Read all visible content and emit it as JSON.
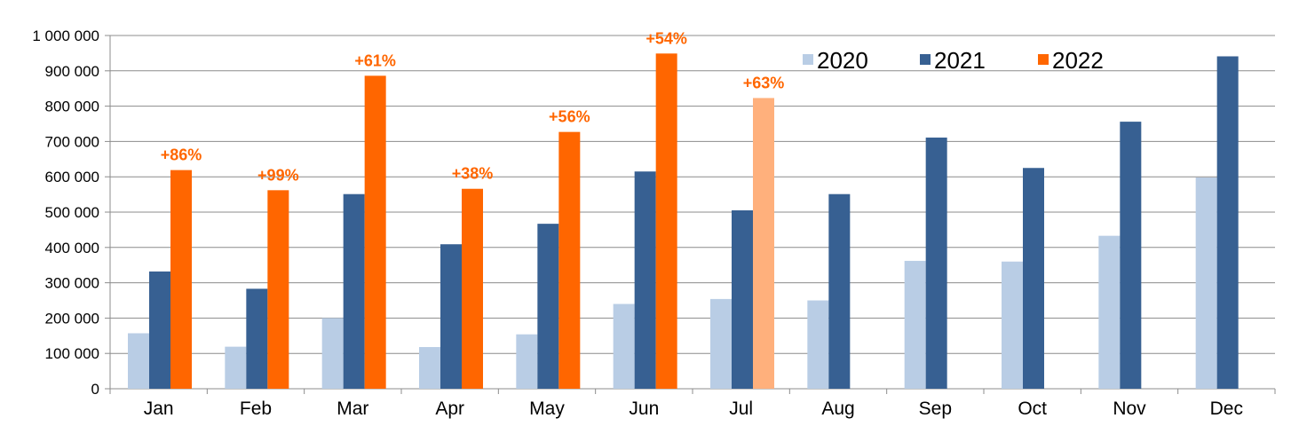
{
  "chart_data": {
    "type": "bar",
    "categories": [
      "Jan",
      "Feb",
      "Mar",
      "Apr",
      "May",
      "Jun",
      "Jul",
      "Aug",
      "Sep",
      "Oct",
      "Nov",
      "Dec"
    ],
    "series": [
      {
        "name": "2020",
        "color": "#b9cde5",
        "values": [
          157000,
          119000,
          200000,
          118000,
          154000,
          240000,
          254000,
          250000,
          362000,
          360000,
          433000,
          598000
        ]
      },
      {
        "name": "2021",
        "color": "#376092",
        "values": [
          332000,
          283000,
          551000,
          409000,
          467000,
          615000,
          505000,
          551000,
          711000,
          625000,
          756000,
          941000
        ]
      },
      {
        "name": "2022",
        "color": "#ff6600",
        "highlight_color": "#ffb07c",
        "highlight_categories": [
          "Jul"
        ],
        "values": [
          619000,
          562000,
          886000,
          566000,
          727000,
          949000,
          823000,
          null,
          null,
          null,
          null,
          null
        ]
      }
    ],
    "annotations": [
      "+86%",
      "+99%",
      "+61%",
      "+38%",
      "+56%",
      "+54%",
      "+63%",
      null,
      null,
      null,
      null,
      null
    ],
    "annotation_color": "#ff6600",
    "ylim": [
      0,
      1000000
    ],
    "yticks": [
      0,
      100000,
      200000,
      300000,
      400000,
      500000,
      600000,
      700000,
      800000,
      900000,
      1000000
    ],
    "ytick_labels": [
      "0",
      "100 000",
      "200 000",
      "300 000",
      "400 000",
      "500 000",
      "600 000",
      "700 000",
      "800 000",
      "900 000",
      "1 000 000"
    ],
    "title": "",
    "xlabel": "",
    "ylabel": "",
    "grid": true,
    "legend_position": "top-right"
  }
}
